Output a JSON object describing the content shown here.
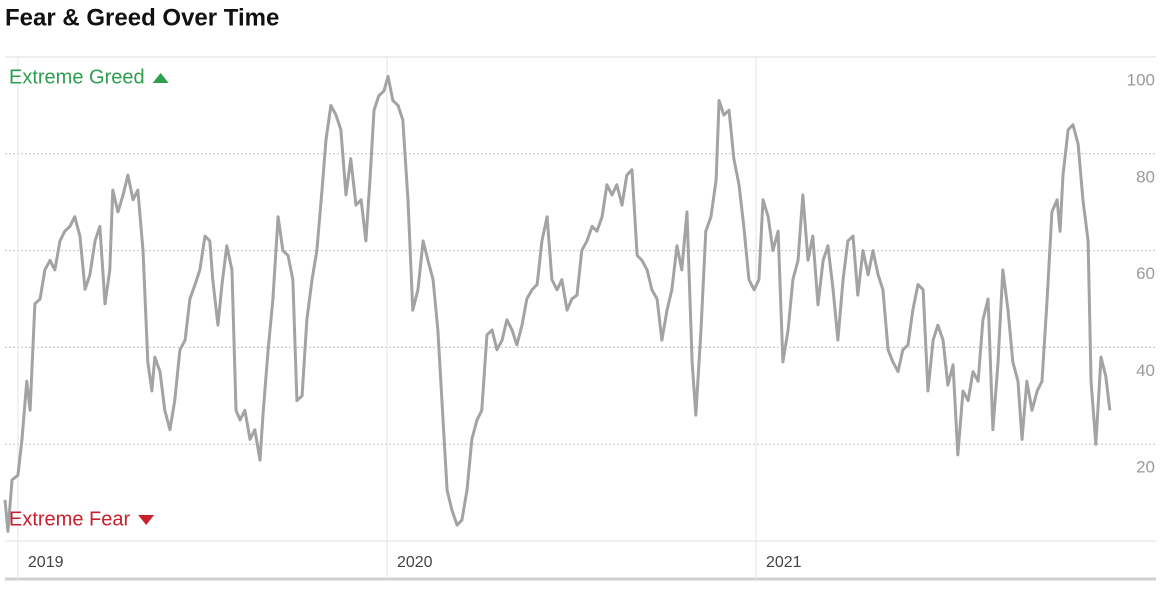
{
  "chart_data": {
    "type": "line",
    "title": "Fear & Greed Over Time",
    "color": "#a3a3a3",
    "grid": true,
    "ylim": [
      0,
      100
    ],
    "yticks": [
      20,
      40,
      60,
      80,
      100
    ],
    "xlim": [
      2018.965,
      2022.084
    ],
    "xticks": [
      2019,
      2020,
      2021
    ],
    "annotations": [
      {
        "text": "Extreme Greed",
        "color": "#2e9e4f",
        "direction": "up"
      },
      {
        "text": "Extreme Fear",
        "color": "#c8202f",
        "direction": "down"
      }
    ],
    "x": [
      2018.965,
      2018.973,
      2018.984,
      2019.0,
      2019.011,
      2019.024,
      2019.033,
      2019.046,
      2019.06,
      2019.073,
      2019.087,
      2019.1,
      2019.114,
      2019.127,
      2019.141,
      2019.154,
      2019.168,
      2019.182,
      2019.195,
      2019.209,
      2019.222,
      2019.236,
      2019.249,
      2019.257,
      2019.271,
      2019.285,
      2019.298,
      2019.312,
      2019.325,
      2019.339,
      2019.352,
      2019.363,
      2019.371,
      2019.385,
      2019.398,
      2019.412,
      2019.425,
      2019.439,
      2019.453,
      2019.466,
      2019.48,
      2019.493,
      2019.507,
      2019.52,
      2019.528,
      2019.542,
      2019.553,
      2019.566,
      2019.58,
      2019.591,
      2019.602,
      2019.615,
      2019.629,
      2019.642,
      2019.656,
      2019.664,
      2019.678,
      2019.691,
      2019.705,
      2019.718,
      2019.732,
      2019.745,
      2019.756,
      2019.77,
      2019.783,
      2019.797,
      2019.81,
      2019.824,
      2019.835,
      2019.848,
      2019.862,
      2019.875,
      2019.889,
      2019.902,
      2019.916,
      2019.93,
      2019.943,
      2019.954,
      2019.965,
      2019.978,
      2019.992,
      2020.003,
      2020.016,
      2020.03,
      2020.043,
      2020.057,
      2020.07,
      2020.084,
      2020.098,
      2020.111,
      2020.125,
      2020.138,
      2020.152,
      2020.163,
      2020.176,
      2020.19,
      2020.203,
      2020.217,
      2020.23,
      2020.244,
      2020.257,
      2020.271,
      2020.285,
      2020.298,
      2020.312,
      2020.325,
      2020.339,
      2020.352,
      2020.366,
      2020.379,
      2020.393,
      2020.407,
      2020.42,
      2020.434,
      2020.447,
      2020.461,
      2020.474,
      2020.488,
      2020.501,
      2020.515,
      2020.528,
      2020.542,
      2020.556,
      2020.569,
      2020.583,
      2020.596,
      2020.61,
      2020.623,
      2020.637,
      2020.65,
      2020.664,
      2020.678,
      2020.691,
      2020.705,
      2020.718,
      2020.732,
      2020.745,
      2020.759,
      2020.772,
      2020.786,
      2020.799,
      2020.813,
      2020.827,
      2020.837,
      2020.851,
      2020.864,
      2020.878,
      2020.892,
      2020.9,
      2020.913,
      2020.927,
      2020.94,
      2020.954,
      2020.967,
      2020.981,
      2020.995,
      2021.008,
      2021.019,
      2021.033,
      2021.046,
      2021.06,
      2021.073,
      2021.087,
      2021.1,
      2021.114,
      2021.127,
      2021.141,
      2021.154,
      2021.168,
      2021.182,
      2021.195,
      2021.209,
      2021.222,
      2021.236,
      2021.249,
      2021.263,
      2021.276,
      2021.29,
      2021.304,
      2021.317,
      2021.331,
      2021.344,
      2021.358,
      2021.371,
      2021.385,
      2021.398,
      2021.412,
      2021.425,
      2021.439,
      2021.453,
      2021.466,
      2021.48,
      2021.493,
      2021.507,
      2021.52,
      2021.534,
      2021.547,
      2021.561,
      2021.575,
      2021.588,
      2021.602,
      2021.615,
      2021.629,
      2021.642,
      2021.656,
      2021.669,
      2021.683,
      2021.696,
      2021.71,
      2021.721,
      2021.734,
      2021.748,
      2021.762,
      2021.775,
      2021.789,
      2021.802,
      2021.816,
      2021.824,
      2021.832,
      2021.846,
      2021.859,
      2021.873,
      2021.886,
      2021.9,
      2021.908,
      2021.921,
      2021.935,
      2021.948,
      2021.959
    ],
    "values": [
      8.5,
      2,
      12.6,
      13.6,
      21,
      33,
      27,
      49,
      50,
      56,
      58,
      56,
      62,
      64,
      65,
      67,
      63,
      52,
      55,
      62,
      65,
      49,
      56,
      72.5,
      68,
      71.5,
      75.6,
      70.5,
      72.5,
      60,
      37,
      31,
      38,
      35,
      27,
      23,
      29,
      39.5,
      41.5,
      50,
      53,
      56,
      63,
      62,
      54,
      44.6,
      53,
      61,
      56,
      27,
      25,
      27,
      21,
      23,
      16.7,
      26,
      39.5,
      50,
      67,
      60,
      59,
      54,
      29,
      30,
      45.7,
      54,
      60,
      72.5,
      83,
      90,
      88,
      85,
      71.5,
      79,
      69.4,
      70.5,
      62,
      74.6,
      89,
      92,
      93,
      96,
      91,
      90,
      87,
      70.5,
      47.7,
      51.9,
      62,
      58,
      54,
      43.6,
      25,
      10.5,
      6.4,
      3.3,
      4.3,
      10.5,
      21,
      25,
      27,
      42.6,
      43.6,
      39.5,
      41.5,
      45.7,
      43.6,
      40.5,
      44.6,
      50,
      51.9,
      53,
      62,
      67,
      54,
      51.9,
      54,
      47.7,
      50,
      50.8,
      60,
      62,
      65,
      64,
      67,
      73.6,
      71.5,
      73.6,
      69.4,
      75.6,
      76.7,
      59,
      58,
      56,
      51.9,
      50,
      41.5,
      47.7,
      51.9,
      61,
      56,
      68,
      37,
      26,
      43.6,
      64,
      67,
      74.6,
      91,
      88,
      89,
      79,
      73.6,
      65,
      54,
      51.9,
      54,
      70.5,
      67,
      60,
      64,
      37,
      43.6,
      54,
      58,
      71.5,
      58,
      63,
      48.8,
      58,
      61,
      51.9,
      41.5,
      54,
      62,
      63,
      50.8,
      60,
      55,
      60,
      55,
      51.9,
      39.5,
      37,
      35,
      39.5,
      40.5,
      47.7,
      53,
      51.9,
      31,
      41.5,
      44.6,
      41.5,
      32.2,
      36.4,
      17.8,
      31,
      29,
      35,
      33,
      45.7,
      50,
      23,
      37,
      56,
      47.7,
      37,
      33,
      21,
      33,
      27,
      31,
      33,
      50,
      68,
      70.5,
      64,
      75.6,
      85,
      86,
      82,
      70.5,
      62,
      33,
      20,
      38,
      34,
      27
    ]
  }
}
